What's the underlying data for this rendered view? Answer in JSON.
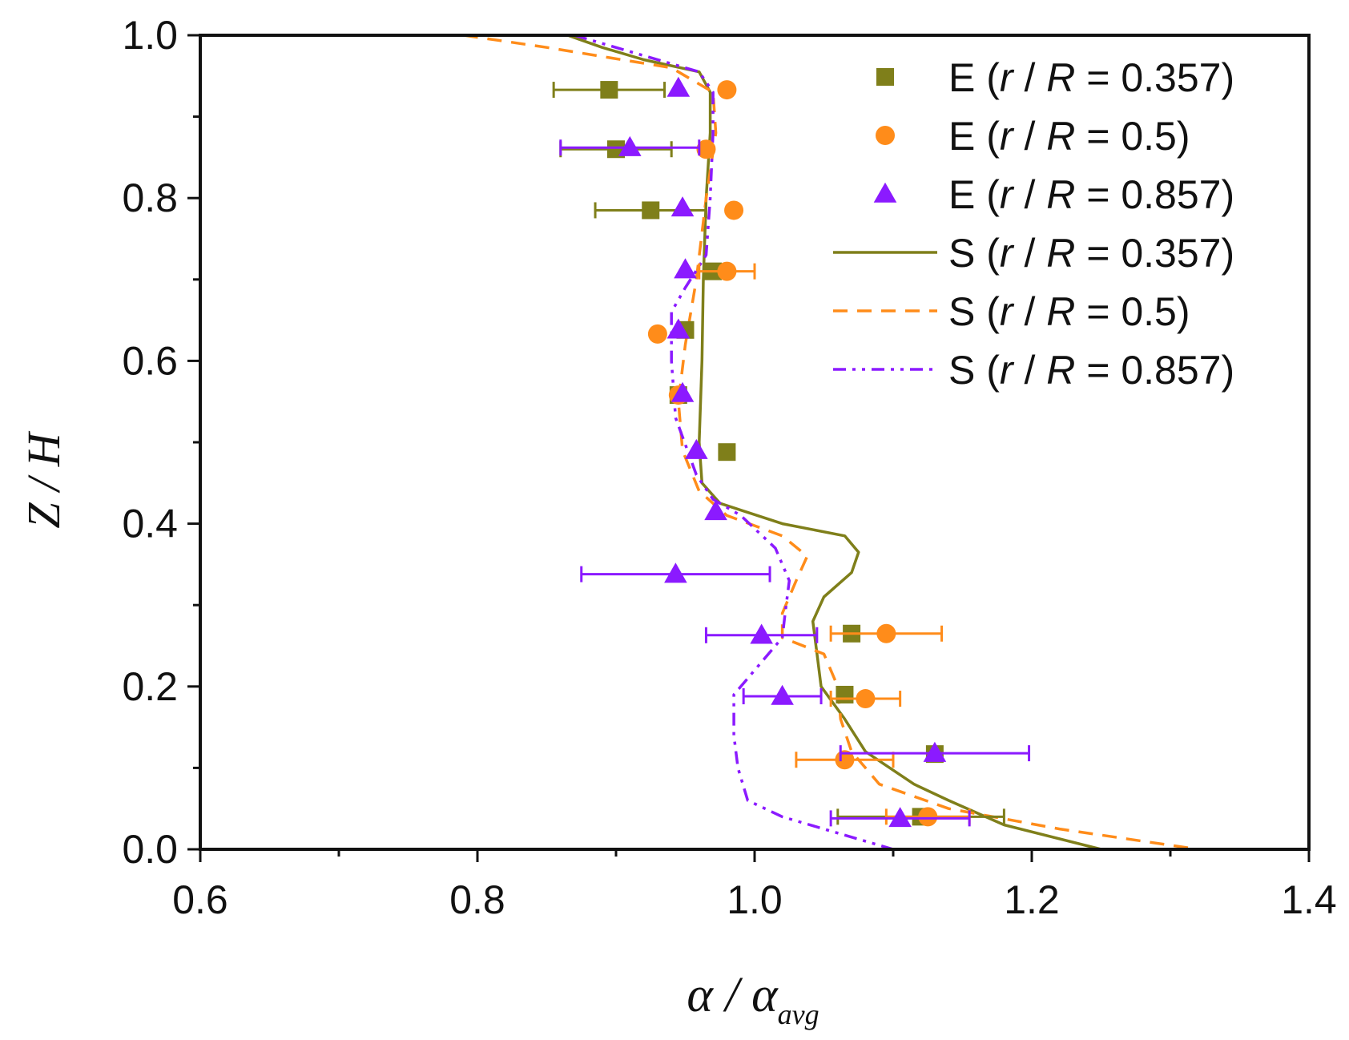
{
  "chart_data": {
    "type": "scatter",
    "xlabel": {
      "main": "α / α",
      "sub": "avg"
    },
    "ylabel": "Z / H",
    "xlim": [
      0.6,
      1.4
    ],
    "ylim": [
      0.0,
      1.0
    ],
    "x_ticks": [
      "0.6",
      "0.8",
      "1.0",
      "1.2",
      "1.4"
    ],
    "y_ticks": [
      "0.0",
      "0.2",
      "0.4",
      "0.6",
      "0.8",
      "1.0"
    ],
    "grid": false,
    "legend_position": "top-right",
    "colors": {
      "olive": "#7f7f1a",
      "orange": "#ff8c1a",
      "purple": "#8b1aff"
    },
    "series": [
      {
        "name": "E (r / R = 0.357)",
        "legend": {
          "prefix": "E (",
          "r": "r",
          "slash": " / ",
          "R": "R",
          "suffix": " = 0.357)"
        },
        "kind": "markers",
        "marker": "square",
        "color": "#7f7f1a",
        "points": [
          {
            "x": 0.895,
            "y": 0.933,
            "xerr": 0.04
          },
          {
            "x": 0.9,
            "y": 0.86,
            "xerr": 0.04
          },
          {
            "x": 0.925,
            "y": 0.785,
            "xerr": 0.04
          },
          {
            "x": 0.97,
            "y": 0.71
          },
          {
            "x": 0.95,
            "y": 0.638
          },
          {
            "x": 0.945,
            "y": 0.558
          },
          {
            "x": 0.98,
            "y": 0.488
          },
          {
            "x": 1.07,
            "y": 0.265
          },
          {
            "x": 1.065,
            "y": 0.19
          },
          {
            "x": 1.13,
            "y": 0.117
          },
          {
            "x": 1.12,
            "y": 0.04,
            "xerr": 0.06
          }
        ]
      },
      {
        "name": "E (r / R = 0.5)",
        "legend": {
          "prefix": "E (",
          "r": "r",
          "slash": " / ",
          "R": "R",
          "suffix": " = 0.5)"
        },
        "kind": "markers",
        "marker": "circle",
        "color": "#ff8c1a",
        "points": [
          {
            "x": 0.98,
            "y": 0.933
          },
          {
            "x": 0.965,
            "y": 0.86
          },
          {
            "x": 0.985,
            "y": 0.785
          },
          {
            "x": 0.98,
            "y": 0.71,
            "xerr": 0.02
          },
          {
            "x": 0.93,
            "y": 0.633
          },
          {
            "x": 0.945,
            "y": 0.558
          },
          {
            "x": 1.095,
            "y": 0.265,
            "xerr": 0.04
          },
          {
            "x": 1.08,
            "y": 0.185,
            "xerr": 0.025
          },
          {
            "x": 1.065,
            "y": 0.11,
            "xerr": 0.035
          },
          {
            "x": 1.125,
            "y": 0.04,
            "xerr": 0.03
          }
        ]
      },
      {
        "name": "E (r / R = 0.857)",
        "legend": {
          "prefix": "E (",
          "r": "r",
          "slash": " / ",
          "R": "R",
          "suffix": " = 0.857)"
        },
        "kind": "markers",
        "marker": "triangle",
        "color": "#8b1aff",
        "points": [
          {
            "x": 0.945,
            "y": 0.935
          },
          {
            "x": 0.91,
            "y": 0.862,
            "xerr": 0.05
          },
          {
            "x": 0.948,
            "y": 0.788
          },
          {
            "x": 0.95,
            "y": 0.712
          },
          {
            "x": 0.945,
            "y": 0.638
          },
          {
            "x": 0.948,
            "y": 0.56
          },
          {
            "x": 0.958,
            "y": 0.49
          },
          {
            "x": 0.972,
            "y": 0.415
          },
          {
            "x": 0.943,
            "y": 0.338,
            "xerr": 0.068
          },
          {
            "x": 1.005,
            "y": 0.263,
            "xerr": 0.04
          },
          {
            "x": 1.02,
            "y": 0.188,
            "xerr": 0.028
          },
          {
            "x": 1.13,
            "y": 0.118,
            "xerr": 0.068
          },
          {
            "x": 1.105,
            "y": 0.038,
            "xerr": 0.05
          }
        ]
      },
      {
        "name": "S (r / R = 0.357)",
        "legend": {
          "prefix": "S (",
          "r": "r",
          "slash": " / ",
          "R": "R",
          "suffix": " = 0.357)"
        },
        "kind": "line",
        "dash": "solid",
        "color": "#7f7f1a",
        "points": [
          [
            0.865,
            1.0
          ],
          [
            0.89,
            0.985
          ],
          [
            0.92,
            0.97
          ],
          [
            0.96,
            0.955
          ],
          [
            0.968,
            0.93
          ],
          [
            0.968,
            0.88
          ],
          [
            0.965,
            0.8
          ],
          [
            0.963,
            0.7
          ],
          [
            0.962,
            0.6
          ],
          [
            0.96,
            0.5
          ],
          [
            0.962,
            0.45
          ],
          [
            0.975,
            0.425
          ],
          [
            1.02,
            0.4
          ],
          [
            1.065,
            0.385
          ],
          [
            1.075,
            0.365
          ],
          [
            1.07,
            0.34
          ],
          [
            1.05,
            0.31
          ],
          [
            1.042,
            0.28
          ],
          [
            1.045,
            0.24
          ],
          [
            1.048,
            0.2
          ],
          [
            1.065,
            0.16
          ],
          [
            1.08,
            0.12
          ],
          [
            1.115,
            0.08
          ],
          [
            1.14,
            0.06
          ],
          [
            1.18,
            0.03
          ],
          [
            1.25,
            0.0
          ]
        ]
      },
      {
        "name": "S (r / R = 0.5)",
        "legend": {
          "prefix": "S (",
          "r": "r",
          "slash": " / ",
          "R": "R",
          "suffix": " = 0.5)"
        },
        "kind": "line",
        "dash": "dashed",
        "color": "#ff8c1a",
        "points": [
          [
            0.79,
            1.0
          ],
          [
            0.85,
            0.985
          ],
          [
            0.94,
            0.96
          ],
          [
            0.97,
            0.93
          ],
          [
            0.972,
            0.88
          ],
          [
            0.965,
            0.8
          ],
          [
            0.958,
            0.7
          ],
          [
            0.95,
            0.62
          ],
          [
            0.945,
            0.55
          ],
          [
            0.948,
            0.49
          ],
          [
            0.96,
            0.44
          ],
          [
            0.98,
            0.41
          ],
          [
            1.02,
            0.385
          ],
          [
            1.038,
            0.36
          ],
          [
            1.03,
            0.33
          ],
          [
            1.02,
            0.29
          ],
          [
            1.02,
            0.26
          ],
          [
            1.05,
            0.24
          ],
          [
            1.06,
            0.2
          ],
          [
            1.062,
            0.16
          ],
          [
            1.07,
            0.12
          ],
          [
            1.09,
            0.08
          ],
          [
            1.14,
            0.05
          ],
          [
            1.22,
            0.025
          ],
          [
            1.32,
            0.0
          ]
        ]
      },
      {
        "name": "S (r / R = 0.857)",
        "legend": {
          "prefix": "S (",
          "r": "r",
          "slash": " / ",
          "R": "R",
          "suffix": " = 0.857)"
        },
        "kind": "line",
        "dash": "dashdotdot",
        "color": "#8b1aff",
        "points": [
          [
            0.87,
            1.0
          ],
          [
            0.92,
            0.975
          ],
          [
            0.96,
            0.955
          ],
          [
            0.97,
            0.93
          ],
          [
            0.97,
            0.88
          ],
          [
            0.968,
            0.8
          ],
          [
            0.965,
            0.73
          ],
          [
            0.95,
            0.69
          ],
          [
            0.94,
            0.66
          ],
          [
            0.94,
            0.6
          ],
          [
            0.943,
            0.53
          ],
          [
            0.958,
            0.46
          ],
          [
            0.97,
            0.43
          ],
          [
            0.99,
            0.41
          ],
          [
            1.015,
            0.37
          ],
          [
            1.025,
            0.33
          ],
          [
            1.022,
            0.29
          ],
          [
            1.02,
            0.26
          ],
          [
            1.0,
            0.22
          ],
          [
            0.985,
            0.19
          ],
          [
            0.985,
            0.14
          ],
          [
            0.988,
            0.1
          ],
          [
            0.995,
            0.06
          ],
          [
            1.02,
            0.04
          ],
          [
            1.06,
            0.02
          ],
          [
            1.1,
            0.0
          ]
        ]
      }
    ]
  }
}
